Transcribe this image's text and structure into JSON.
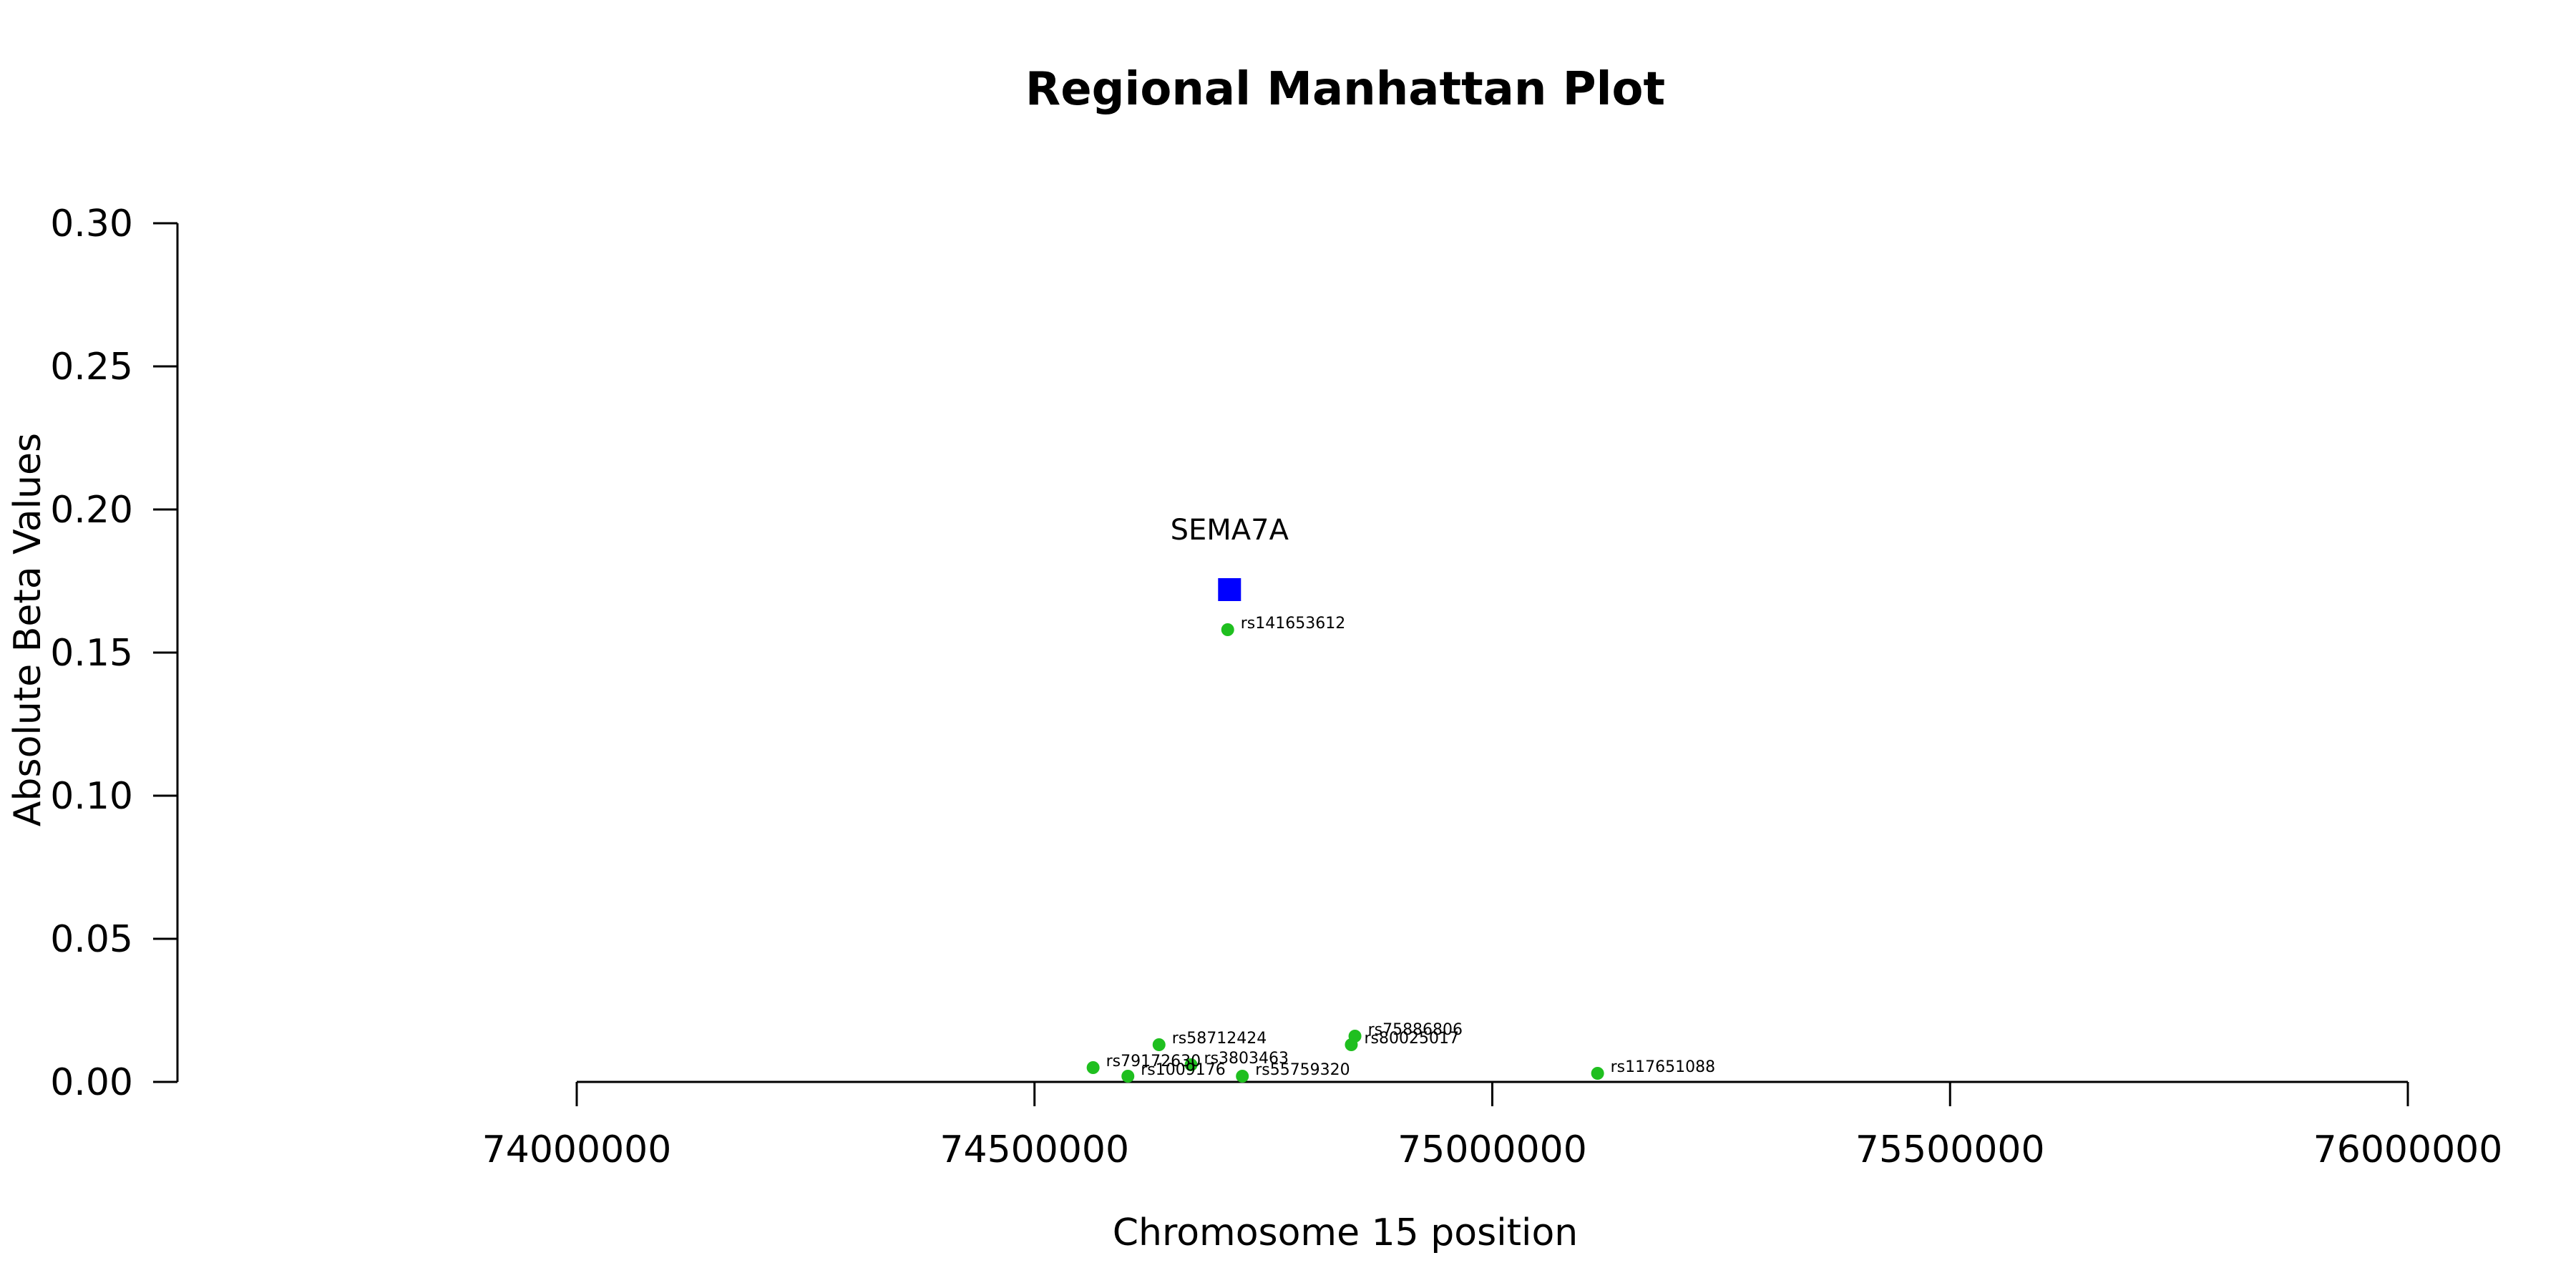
{
  "chart_data": {
    "type": "scatter",
    "title": "Regional Manhattan Plot",
    "xlabel": "Chromosome 15 position",
    "ylabel": "Absolute Beta Values",
    "xlim": [
      74000000,
      76000000
    ],
    "ylim": [
      0,
      0.3
    ],
    "x_ticks": [
      74000000,
      74500000,
      75000000,
      75500000,
      76000000
    ],
    "x_tick_labels": [
      "74000000",
      "74500000",
      "75000000",
      "75500000",
      "76000000"
    ],
    "y_ticks": [
      0,
      0.05,
      0.1,
      0.15,
      0.2,
      0.25,
      0.3
    ],
    "y_tick_labels": [
      "0.00",
      "0.05",
      "0.10",
      "0.15",
      "0.20",
      "0.25",
      "0.30"
    ],
    "grid": false,
    "gene": {
      "name": "SEMA7A",
      "x": 74713000,
      "y": 0.172,
      "color": "#0000ff",
      "marker": "square"
    },
    "snp_color": "#1fbf1f",
    "snps": [
      {
        "name": "rs141653612",
        "x": 74711000,
        "y": 0.158
      },
      {
        "name": "rs75886806",
        "x": 74850000,
        "y": 0.016
      },
      {
        "name": "rs80025017",
        "x": 74846000,
        "y": 0.013
      },
      {
        "name": "rs58712424",
        "x": 74636000,
        "y": 0.013
      },
      {
        "name": "rs3803463",
        "x": 74671000,
        "y": 0.006
      },
      {
        "name": "rs79172630",
        "x": 74564000,
        "y": 0.005
      },
      {
        "name": "rs1009176",
        "x": 74602000,
        "y": 0.002
      },
      {
        "name": "rs55759320",
        "x": 74727000,
        "y": 0.002
      },
      {
        "name": "rs117651088",
        "x": 75115000,
        "y": 0.003
      }
    ]
  }
}
